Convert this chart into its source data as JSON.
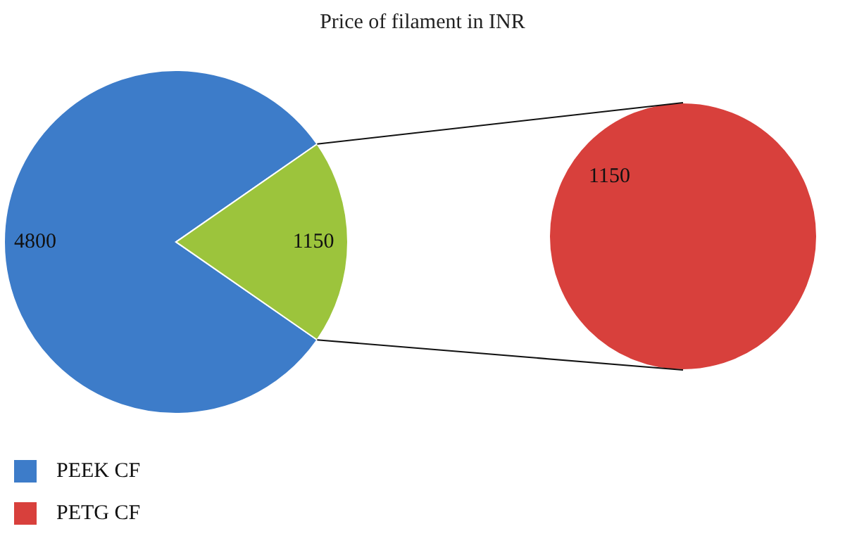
{
  "chart_data": [
    {
      "type": "pie",
      "title": "Price of filament in INR",
      "categories": [
        "PEEK CF",
        null
      ],
      "values": [
        4800,
        1150
      ],
      "colors": [
        "#3d7cc9",
        "#9cc43c"
      ],
      "data_labels": true,
      "legend": "bottom left"
    },
    {
      "type": "pie",
      "categories": [
        "PETG CF"
      ],
      "values": [
        1150
      ],
      "colors": [
        "#d8403c"
      ],
      "data_labels": true,
      "legend": "bottom left"
    }
  ]
}
